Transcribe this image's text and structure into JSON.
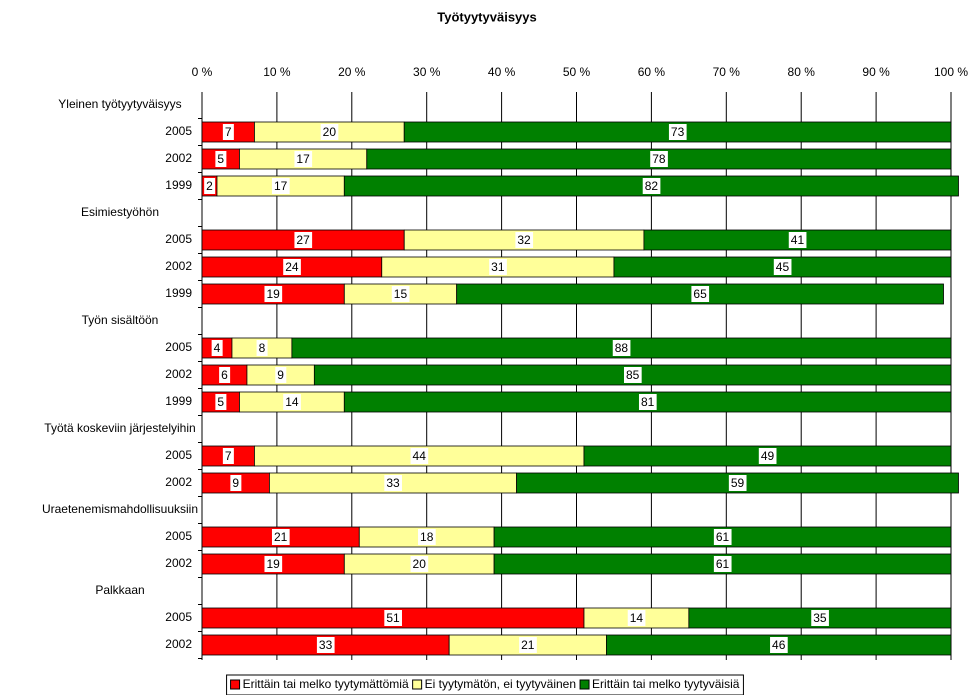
{
  "chart_data": {
    "type": "stacked-bar-horizontal",
    "title": "Työtyytyväisyys",
    "categories": [
      "Yleinen työtyytyväisyys",
      "2005",
      "2002",
      "1999",
      "Esimiestyöhön",
      "2005",
      "2002",
      "1999",
      "Työn sisältöön",
      "2005",
      "2002",
      "1999",
      "Työtä koskeviin järjestelyihin",
      "2005",
      "2002",
      "Uraetenemismahdollisuuksiin",
      "2005",
      "2002",
      "Palkkaan",
      "2005",
      "2002"
    ],
    "series": [
      {
        "name": "Erittäin tai melko tyytymättömiä",
        "color": "#ff0000",
        "values": [
          null,
          7,
          5,
          2,
          null,
          27,
          24,
          19,
          null,
          4,
          6,
          5,
          null,
          7,
          9,
          null,
          21,
          19,
          null,
          51,
          33
        ]
      },
      {
        "name": "Ei tyytymätön, ei tyytyväinen",
        "color": "#ffff99",
        "values": [
          null,
          20,
          17,
          17,
          null,
          32,
          31,
          15,
          null,
          8,
          9,
          14,
          null,
          44,
          33,
          null,
          18,
          20,
          null,
          14,
          21
        ]
      },
      {
        "name": "Erittäin tai melko tyytyväisiä",
        "color": "#008000",
        "values": [
          null,
          73,
          78,
          82,
          null,
          41,
          45,
          65,
          null,
          88,
          85,
          81,
          null,
          49,
          59,
          null,
          61,
          61,
          null,
          35,
          46
        ]
      }
    ],
    "xlim": [
      0,
      100
    ],
    "xticks": [
      {
        "value": 0,
        "label": "0 %"
      },
      {
        "value": 10,
        "label": "10 %"
      },
      {
        "value": 20,
        "label": "20 %"
      },
      {
        "value": 30,
        "label": "30 %"
      },
      {
        "value": 40,
        "label": "40 %"
      },
      {
        "value": 50,
        "label": "50 %"
      },
      {
        "value": 60,
        "label": "60 %"
      },
      {
        "value": 70,
        "label": "70 %"
      },
      {
        "value": 80,
        "label": "80 %"
      },
      {
        "value": 90,
        "label": "90 %"
      },
      {
        "value": 100,
        "label": "100 %"
      }
    ],
    "grid": true,
    "legend": "bottom"
  }
}
